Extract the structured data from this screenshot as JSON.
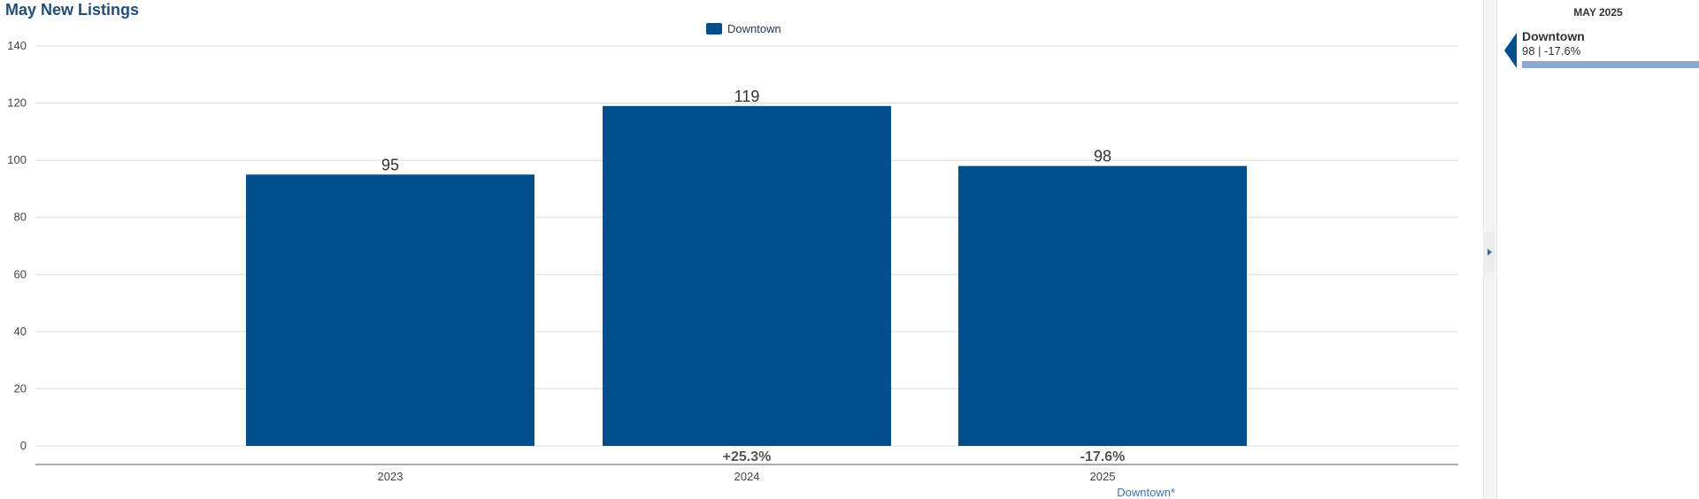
{
  "chart_data": {
    "type": "bar",
    "title": "May New Listings",
    "categories": [
      "2023",
      "2024",
      "2025"
    ],
    "series": [
      {
        "name": "Downtown",
        "values": [
          95,
          119,
          98
        ],
        "color": "#004e8c"
      }
    ],
    "data_labels": [
      "95",
      "119",
      "98"
    ],
    "change_labels": [
      "",
      "+25.3%",
      "-17.6%"
    ],
    "ylim": [
      0,
      140
    ],
    "yticks": [
      0,
      20,
      40,
      60,
      80,
      100,
      120,
      140
    ],
    "grid": true,
    "legend_position": "top-center",
    "xlabel": "",
    "ylabel": ""
  },
  "footnote": {
    "label": "Downtown*"
  },
  "side_panel": {
    "period": "MAY 2025",
    "items": [
      {
        "name": "Downtown",
        "value_text": "98 | -17.6%",
        "bar_fraction": 1.0,
        "bar_color": "#8aa8cc"
      }
    ]
  }
}
